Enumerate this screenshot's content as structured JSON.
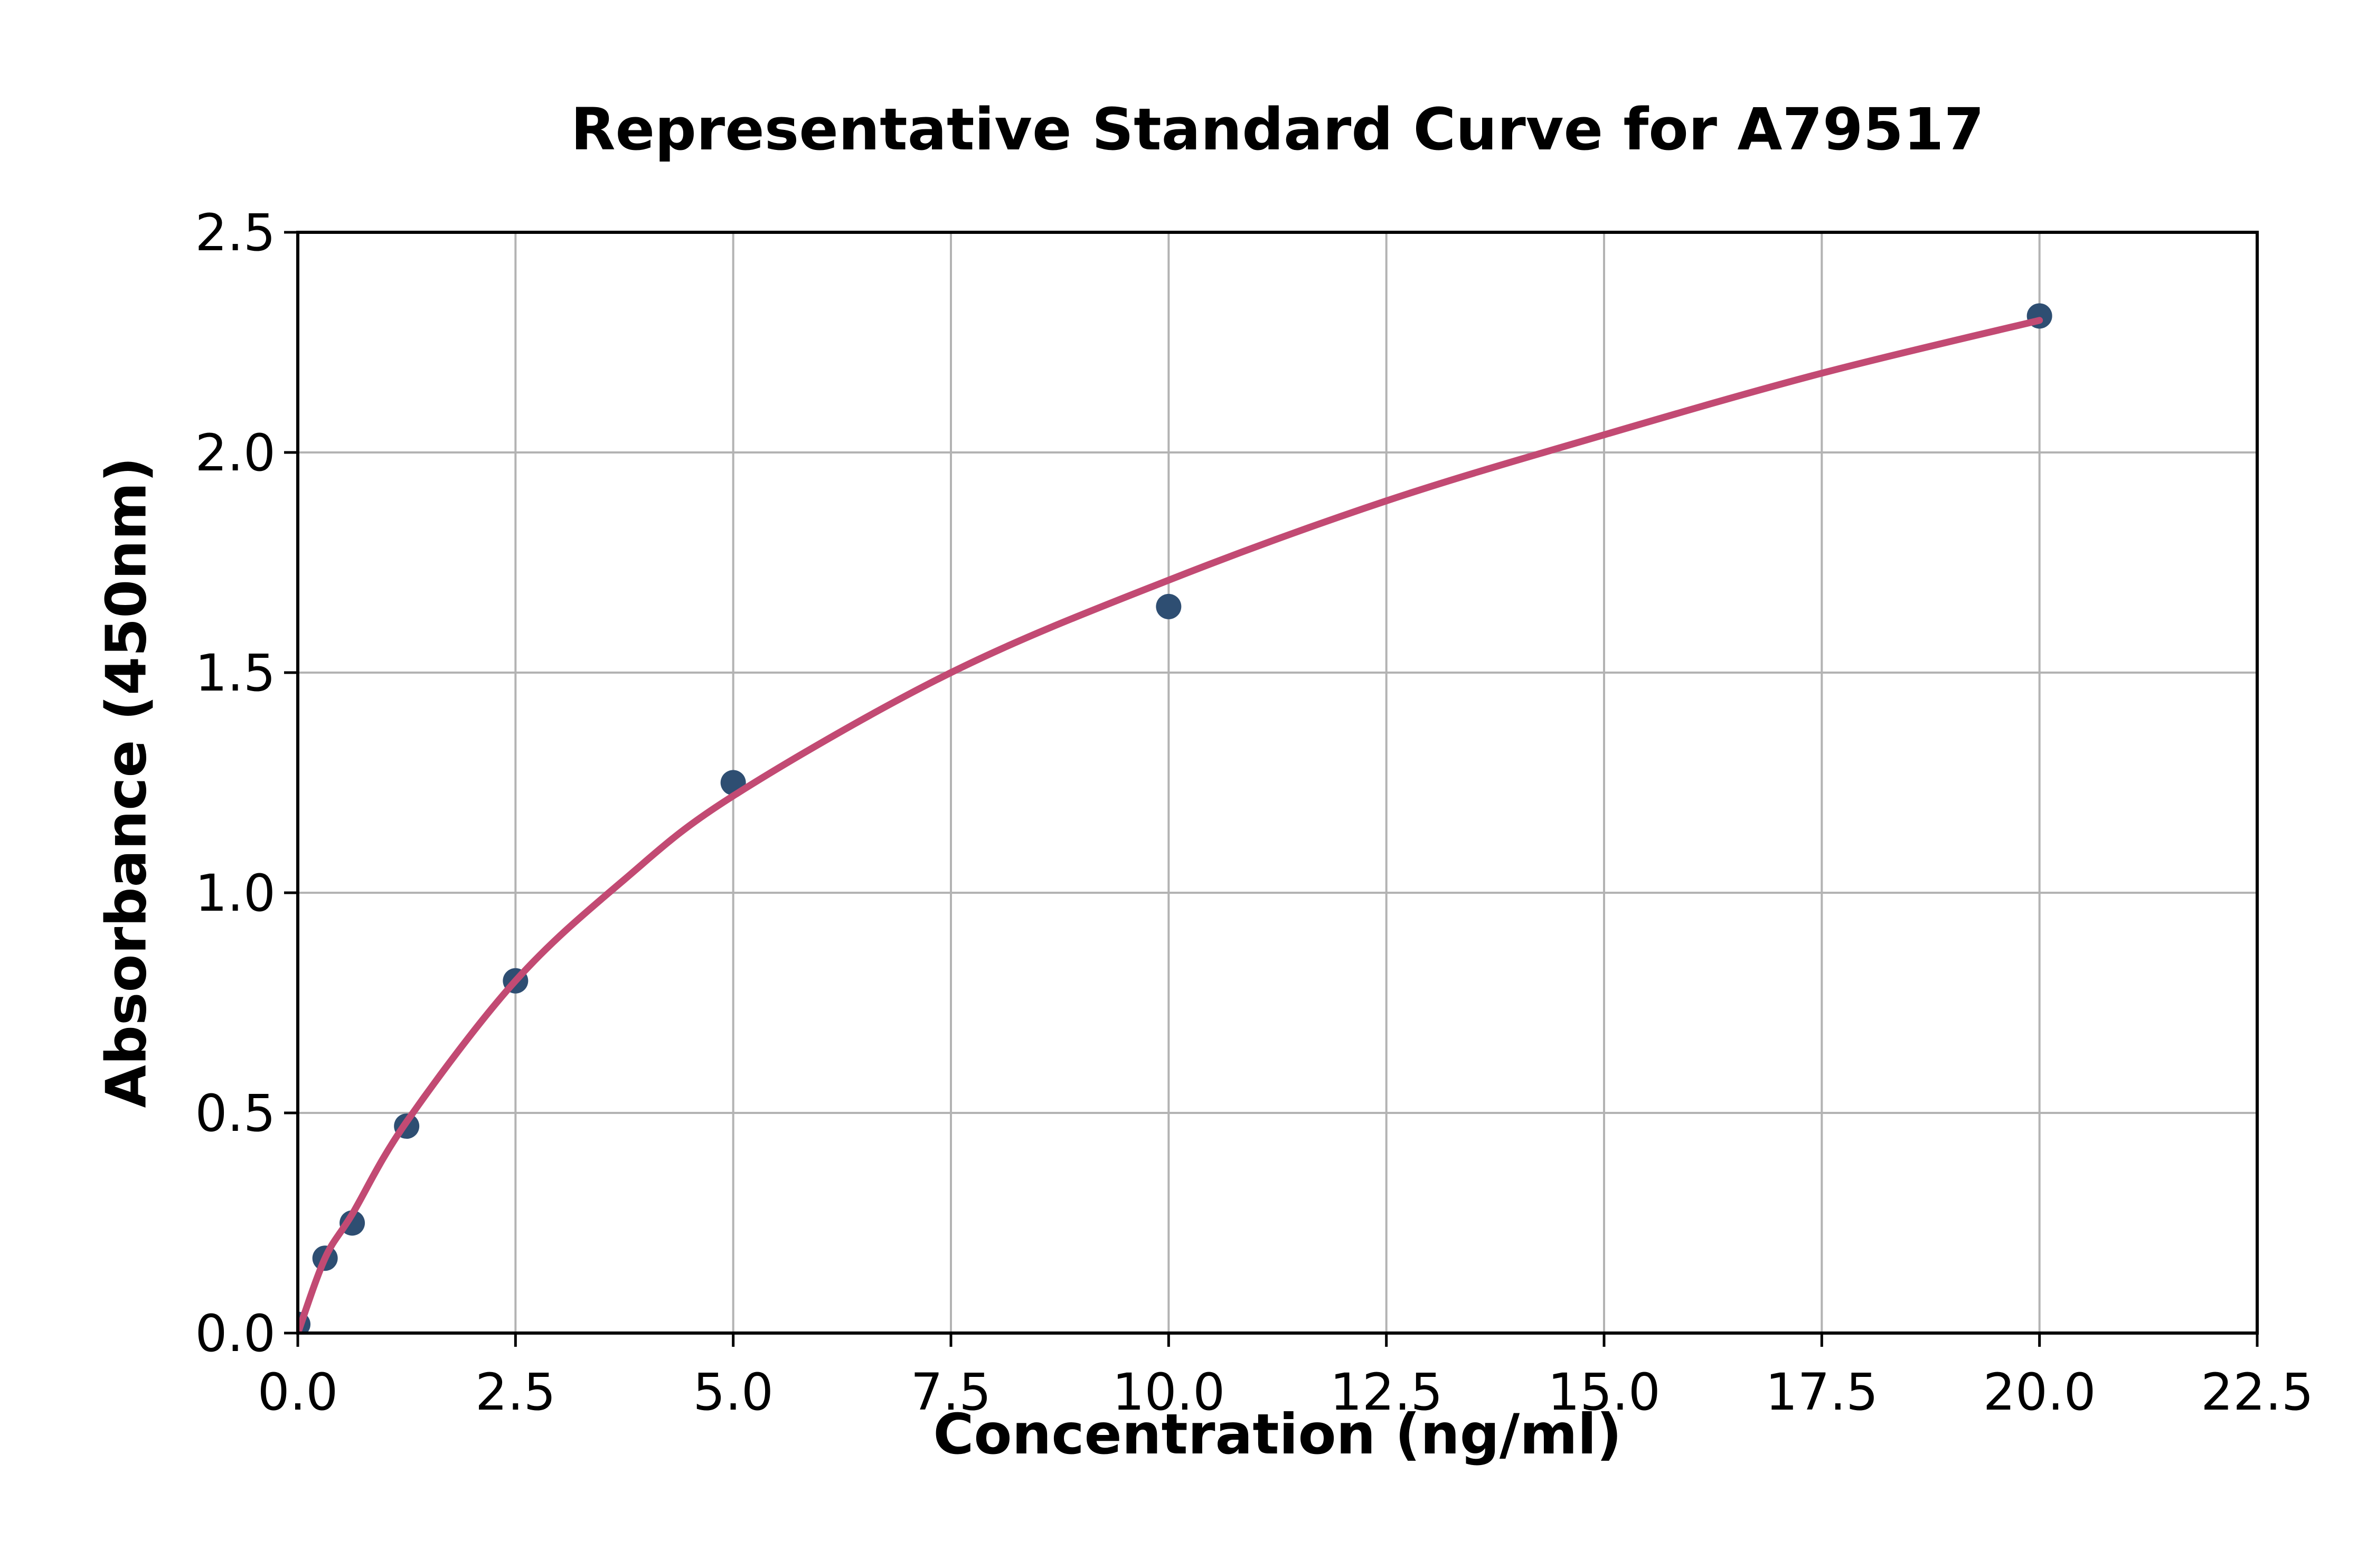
{
  "chart_data": {
    "type": "scatter",
    "title": "Representative Standard Curve for A79517",
    "xlabel": "Concentration (ng/ml)",
    "ylabel": "Absorbance (450nm)",
    "xlim": [
      0,
      22.5
    ],
    "ylim": [
      0,
      2.5
    ],
    "x_tick_labels": [
      "0.0",
      "2.5",
      "5.0",
      "7.5",
      "10.0",
      "12.5",
      "15.0",
      "17.5",
      "20.0",
      "22.5"
    ],
    "y_tick_labels": [
      "0.0",
      "0.5",
      "1.0",
      "1.5",
      "2.0",
      "2.5"
    ],
    "grid": true,
    "legend": "none",
    "points": [
      {
        "x": 0,
        "y": 0.02
      },
      {
        "x": 0.313,
        "y": 0.17
      },
      {
        "x": 0.625,
        "y": 0.25
      },
      {
        "x": 1.25,
        "y": 0.47
      },
      {
        "x": 2.5,
        "y": 0.8
      },
      {
        "x": 5,
        "y": 1.25
      },
      {
        "x": 10,
        "y": 1.65
      },
      {
        "x": 20,
        "y": 2.31
      }
    ],
    "fit_curve": {
      "x": [
        0,
        0.313,
        0.625,
        1.25,
        2.5,
        3.75,
        5,
        7.5,
        10,
        12.5,
        15,
        17.5,
        20
      ],
      "y": [
        0.0,
        0.17,
        0.27,
        0.48,
        0.8,
        1.03,
        1.22,
        1.5,
        1.71,
        1.89,
        2.04,
        2.18,
        2.3
      ]
    },
    "colors": {
      "curve": "#c24a73",
      "marker": "#2e4e72",
      "grid": "#b3b3b3",
      "axis": "#000000",
      "background": "#ffffff"
    }
  }
}
